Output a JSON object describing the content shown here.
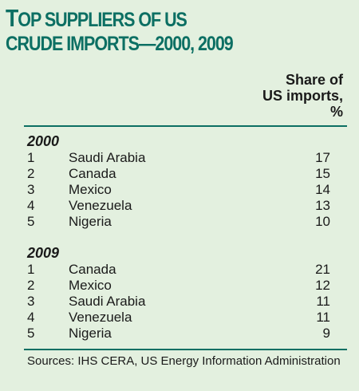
{
  "title": {
    "line1_cap": "T",
    "line1_rest": "OP SUPPLIERS OF US",
    "line2": "CRUDE IMPORTS—2000, 2009"
  },
  "column_header": {
    "line1": "Share of",
    "line2": "US imports,",
    "line3": "%"
  },
  "groups": [
    {
      "year": "2000",
      "rows": [
        {
          "rank": "1",
          "country": "Saudi Arabia",
          "share": "17"
        },
        {
          "rank": "2",
          "country": "Canada",
          "share": "15"
        },
        {
          "rank": "3",
          "country": "Mexico",
          "share": "14"
        },
        {
          "rank": "4",
          "country": "Venezuela",
          "share": "13"
        },
        {
          "rank": "5",
          "country": "Nigeria",
          "share": "10"
        }
      ]
    },
    {
      "year": "2009",
      "rows": [
        {
          "rank": "1",
          "country": "Canada",
          "share": "21"
        },
        {
          "rank": "2",
          "country": "Mexico",
          "share": "12"
        },
        {
          "rank": "3",
          "country": "Saudi Arabia",
          "share": "11"
        },
        {
          "rank": "4",
          "country": "Venezuela",
          "share": "11"
        },
        {
          "rank": "5",
          "country": "Nigeria",
          "share": "9"
        }
      ]
    }
  ],
  "sources": "Sources: IHS CERA, US Energy Information Administration",
  "colors": {
    "background": "#e3f0df",
    "accent": "#0c6f63",
    "text": "#1a1a1a"
  }
}
